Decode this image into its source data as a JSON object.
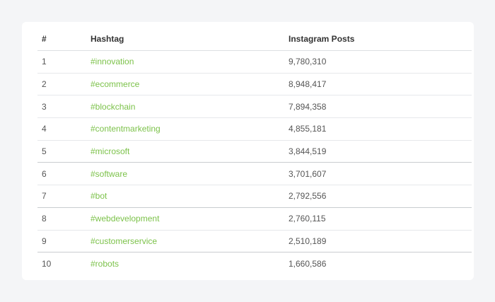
{
  "table": {
    "headers": {
      "rank": "#",
      "hashtag": "Hashtag",
      "posts": "Instagram Posts"
    },
    "rows": [
      {
        "rank": "1",
        "hashtag": "#innovation",
        "posts": "9,780,310"
      },
      {
        "rank": "2",
        "hashtag": "#ecommerce",
        "posts": "8,948,417"
      },
      {
        "rank": "3",
        "hashtag": "#blockchain",
        "posts": "7,894,358"
      },
      {
        "rank": "4",
        "hashtag": "#contentmarketing",
        "posts": "4,855,181"
      },
      {
        "rank": "5",
        "hashtag": "#microsoft",
        "posts": "3,844,519"
      },
      {
        "rank": "6",
        "hashtag": "#software",
        "posts": "3,701,607"
      },
      {
        "rank": "7",
        "hashtag": "#bot",
        "posts": "2,792,556"
      },
      {
        "rank": "8",
        "hashtag": "#webdevelopment",
        "posts": "2,760,115"
      },
      {
        "rank": "9",
        "hashtag": "#customerservice",
        "posts": "2,510,189"
      },
      {
        "rank": "10",
        "hashtag": "#robots",
        "posts": "1,660,586"
      }
    ]
  },
  "colors": {
    "background": "#f4f5f7",
    "card": "#ffffff",
    "link": "#7cc24a",
    "text": "#555555",
    "header_text": "#333333"
  }
}
